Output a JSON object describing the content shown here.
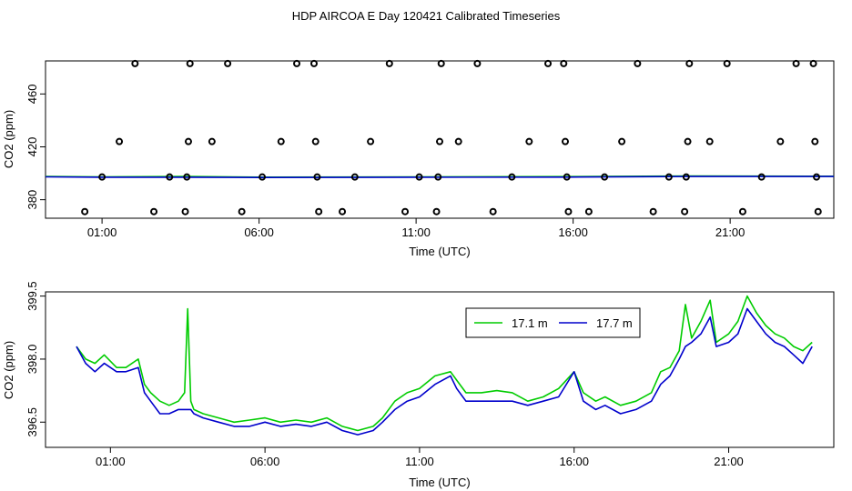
{
  "title": "HDP AIRCOA E  Day 120421  Calibrated Timeseries",
  "colors": {
    "green": "#00CC00",
    "blue": "#0000CC",
    "axis": "#000000"
  },
  "chart_data": [
    {
      "type": "scatter",
      "xlabel": "Time (UTC)",
      "ylabel": "CO2 (ppm)",
      "xlim": [
        -0.8,
        24.3
      ],
      "ylim": [
        366,
        485
      ],
      "xticks": [
        1,
        6,
        11,
        16,
        21
      ],
      "xtick_labels": [
        "01:00",
        "06:00",
        "11:00",
        "16:00",
        "21:00"
      ],
      "yticks": [
        380,
        420,
        460
      ],
      "ytick_labels": [
        "380",
        "420",
        "460"
      ],
      "grid": false,
      "points": [
        {
          "x": 1.0,
          "y": 397.2
        },
        {
          "x": 0.45,
          "y": 371
        },
        {
          "x": 1.55,
          "y": 424
        },
        {
          "x": 2.05,
          "y": 483
        },
        {
          "x": 2.65,
          "y": 371
        },
        {
          "x": 3.15,
          "y": 397.2
        },
        {
          "x": 3.65,
          "y": 371
        },
        {
          "x": 3.7,
          "y": 397.2
        },
        {
          "x": 3.75,
          "y": 424
        },
        {
          "x": 3.8,
          "y": 483
        },
        {
          "x": 4.5,
          "y": 424
        },
        {
          "x": 5.0,
          "y": 483
        },
        {
          "x": 5.45,
          "y": 371
        },
        {
          "x": 6.1,
          "y": 397.2
        },
        {
          "x": 6.7,
          "y": 424
        },
        {
          "x": 7.2,
          "y": 483
        },
        {
          "x": 7.75,
          "y": 483
        },
        {
          "x": 7.8,
          "y": 424
        },
        {
          "x": 7.85,
          "y": 397.2
        },
        {
          "x": 7.9,
          "y": 371
        },
        {
          "x": 8.65,
          "y": 371
        },
        {
          "x": 9.05,
          "y": 397.2
        },
        {
          "x": 9.55,
          "y": 424
        },
        {
          "x": 10.15,
          "y": 483
        },
        {
          "x": 10.65,
          "y": 371
        },
        {
          "x": 11.1,
          "y": 397.2
        },
        {
          "x": 11.65,
          "y": 371
        },
        {
          "x": 11.7,
          "y": 397.2
        },
        {
          "x": 11.75,
          "y": 424
        },
        {
          "x": 11.8,
          "y": 483
        },
        {
          "x": 12.35,
          "y": 424
        },
        {
          "x": 12.95,
          "y": 483
        },
        {
          "x": 13.45,
          "y": 371
        },
        {
          "x": 14.05,
          "y": 397.2
        },
        {
          "x": 14.6,
          "y": 424
        },
        {
          "x": 15.2,
          "y": 483
        },
        {
          "x": 15.7,
          "y": 483
        },
        {
          "x": 15.75,
          "y": 424
        },
        {
          "x": 15.8,
          "y": 397.2
        },
        {
          "x": 15.85,
          "y": 371
        },
        {
          "x": 16.5,
          "y": 371
        },
        {
          "x": 17.0,
          "y": 397.2
        },
        {
          "x": 17.55,
          "y": 424
        },
        {
          "x": 18.05,
          "y": 483
        },
        {
          "x": 18.55,
          "y": 371
        },
        {
          "x": 19.05,
          "y": 397.2
        },
        {
          "x": 19.55,
          "y": 371
        },
        {
          "x": 19.6,
          "y": 397.2
        },
        {
          "x": 19.65,
          "y": 424
        },
        {
          "x": 19.7,
          "y": 483
        },
        {
          "x": 20.35,
          "y": 424
        },
        {
          "x": 20.9,
          "y": 483
        },
        {
          "x": 21.4,
          "y": 371
        },
        {
          "x": 22.0,
          "y": 397.2
        },
        {
          "x": 22.6,
          "y": 424
        },
        {
          "x": 23.1,
          "y": 483
        },
        {
          "x": 23.65,
          "y": 483
        },
        {
          "x": 23.7,
          "y": 424
        },
        {
          "x": 23.75,
          "y": 397.2
        },
        {
          "x": 23.8,
          "y": 371
        }
      ],
      "series": [
        {
          "color": "#00CC00",
          "x": [
            -0.8,
            1,
            3.7,
            6,
            11,
            15.8,
            19.7,
            24.3
          ],
          "y": [
            397.6,
            397.3,
            397.6,
            397.1,
            397.3,
            397.5,
            397.9,
            397.8
          ]
        },
        {
          "color": "#0000CC",
          "x": [
            -0.8,
            1,
            3.7,
            6,
            11,
            15.8,
            19.7,
            24.3
          ],
          "y": [
            397.3,
            397.0,
            397.0,
            396.8,
            397.0,
            397.1,
            397.6,
            397.6
          ]
        }
      ]
    },
    {
      "type": "line",
      "xlabel": "Time (UTC)",
      "ylabel": "CO2 (ppm)",
      "xlim": [
        -1.1,
        24.4
      ],
      "ylim": [
        395.9,
        399.6
      ],
      "xticks": [
        1,
        6,
        11,
        16,
        21
      ],
      "xtick_labels": [
        "01:00",
        "06:00",
        "11:00",
        "16:00",
        "21:00"
      ],
      "yticks": [
        396.5,
        398.0,
        399.5
      ],
      "ytick_labels": [
        "396.5",
        "398.0",
        "399.5"
      ],
      "grid": false,
      "legend_position": "top-right",
      "series": [
        {
          "name": "17.1 m",
          "color": "#00CC00",
          "x": [
            -0.1,
            0.2,
            0.5,
            0.8,
            1.2,
            1.5,
            1.9,
            2.1,
            2.3,
            2.6,
            2.9,
            3.2,
            3.4,
            3.5,
            3.6,
            3.7,
            4.0,
            4.5,
            5.0,
            5.5,
            6.0,
            6.5,
            7.0,
            7.5,
            8.0,
            8.5,
            9.0,
            9.5,
            9.8,
            10.2,
            10.6,
            11.0,
            11.5,
            12.0,
            12.2,
            12.5,
            13.0,
            13.5,
            14.0,
            14.5,
            15.0,
            15.5,
            16.0,
            16.3,
            16.7,
            17.0,
            17.5,
            18.0,
            18.5,
            18.8,
            19.1,
            19.4,
            19.6,
            19.8,
            20.1,
            20.4,
            20.6,
            21.0,
            21.3,
            21.6,
            21.9,
            22.2,
            22.5,
            22.8,
            23.1,
            23.4,
            23.7
          ],
          "y": [
            398.3,
            398.0,
            397.9,
            398.1,
            397.8,
            397.8,
            398.0,
            397.4,
            397.2,
            397.0,
            396.9,
            397.0,
            397.2,
            399.2,
            397.0,
            396.8,
            396.7,
            396.6,
            396.5,
            396.55,
            396.6,
            396.5,
            396.55,
            396.5,
            396.6,
            396.4,
            396.3,
            396.4,
            396.6,
            397.0,
            397.2,
            397.3,
            397.6,
            397.7,
            397.5,
            397.2,
            397.2,
            397.25,
            397.2,
            397.0,
            397.1,
            397.3,
            397.7,
            397.2,
            397.0,
            397.1,
            396.9,
            397.0,
            397.2,
            397.7,
            397.8,
            398.2,
            399.3,
            398.5,
            398.9,
            399.4,
            398.4,
            398.6,
            398.9,
            399.5,
            399.1,
            398.8,
            398.6,
            398.5,
            398.3,
            398.2,
            398.4
          ]
        },
        {
          "name": "17.7 m",
          "color": "#0000CC",
          "x": [
            -0.1,
            0.2,
            0.5,
            0.8,
            1.2,
            1.5,
            1.9,
            2.1,
            2.3,
            2.6,
            2.9,
            3.2,
            3.4,
            3.5,
            3.6,
            3.7,
            4.0,
            4.5,
            5.0,
            5.5,
            6.0,
            6.5,
            7.0,
            7.5,
            8.0,
            8.5,
            9.0,
            9.5,
            9.8,
            10.2,
            10.6,
            11.0,
            11.5,
            12.0,
            12.2,
            12.5,
            13.0,
            13.5,
            14.0,
            14.5,
            15.0,
            15.5,
            16.0,
            16.3,
            16.7,
            17.0,
            17.5,
            18.0,
            18.5,
            18.8,
            19.1,
            19.4,
            19.6,
            19.8,
            20.1,
            20.4,
            20.6,
            21.0,
            21.3,
            21.6,
            21.9,
            22.2,
            22.5,
            22.8,
            23.1,
            23.4,
            23.7
          ],
          "y": [
            398.3,
            397.9,
            397.7,
            397.9,
            397.7,
            397.7,
            397.8,
            397.2,
            397.0,
            396.7,
            396.7,
            396.8,
            396.8,
            396.8,
            396.8,
            396.7,
            396.6,
            396.5,
            396.4,
            396.4,
            396.5,
            396.4,
            396.45,
            396.4,
            396.5,
            396.3,
            396.2,
            396.3,
            396.5,
            396.8,
            397.0,
            397.1,
            397.4,
            397.6,
            397.3,
            397.0,
            397.0,
            397.0,
            397.0,
            396.9,
            397.0,
            397.1,
            397.7,
            397.0,
            396.8,
            396.9,
            396.7,
            396.8,
            397.0,
            397.4,
            397.6,
            398.0,
            398.3,
            398.4,
            398.6,
            399.0,
            398.3,
            398.4,
            398.6,
            399.2,
            398.9,
            398.6,
            398.4,
            398.3,
            398.1,
            397.9,
            398.3
          ]
        }
      ]
    }
  ]
}
